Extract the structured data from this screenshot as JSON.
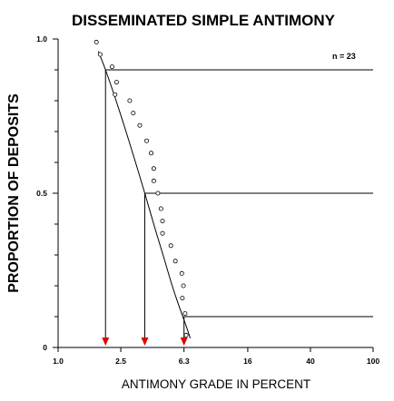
{
  "chart_data": {
    "type": "scatter",
    "title": "DISSEMINATED SIMPLE ANTIMONY",
    "xlabel": "ANTIMONY GRADE IN PERCENT",
    "ylabel": "PROPORTION OF DEPOSITS",
    "x_scale": "log",
    "xlim": [
      1.0,
      100
    ],
    "ylim": [
      0,
      1.0
    ],
    "x_ticks": [
      {
        "value": 1.0,
        "label": "1.0"
      },
      {
        "value": 2.5,
        "label": "2.5"
      },
      {
        "value": 6.3,
        "label": "6.3"
      },
      {
        "value": 16,
        "label": "16"
      },
      {
        "value": 40,
        "label": "40"
      },
      {
        "value": 100,
        "label": "100"
      }
    ],
    "y_ticks": [
      {
        "value": 0,
        "label": "0"
      },
      {
        "value": 0.5,
        "label": "0.5"
      },
      {
        "value": 1.0,
        "label": "1.0"
      }
    ],
    "annotation": "n = 23",
    "grid": false,
    "points": [
      {
        "x": 1.75,
        "y": 0.99
      },
      {
        "x": 1.85,
        "y": 0.95
      },
      {
        "x": 2.2,
        "y": 0.91
      },
      {
        "x": 2.35,
        "y": 0.86
      },
      {
        "x": 2.3,
        "y": 0.82
      },
      {
        "x": 2.85,
        "y": 0.8
      },
      {
        "x": 3.0,
        "y": 0.76
      },
      {
        "x": 3.3,
        "y": 0.72
      },
      {
        "x": 3.65,
        "y": 0.67
      },
      {
        "x": 3.9,
        "y": 0.63
      },
      {
        "x": 4.05,
        "y": 0.58
      },
      {
        "x": 4.05,
        "y": 0.54
      },
      {
        "x": 4.3,
        "y": 0.5
      },
      {
        "x": 4.5,
        "y": 0.45
      },
      {
        "x": 4.6,
        "y": 0.41
      },
      {
        "x": 4.6,
        "y": 0.37
      },
      {
        "x": 5.2,
        "y": 0.33
      },
      {
        "x": 5.55,
        "y": 0.28
      },
      {
        "x": 6.1,
        "y": 0.24
      },
      {
        "x": 6.25,
        "y": 0.2
      },
      {
        "x": 6.15,
        "y": 0.16
      },
      {
        "x": 6.4,
        "y": 0.11
      },
      {
        "x": 6.5,
        "y": 0.04
      }
    ],
    "fitted_curve": [
      {
        "x": 1.8,
        "y": 0.96
      },
      {
        "x": 2.0,
        "y": 0.9
      },
      {
        "x": 2.3,
        "y": 0.81
      },
      {
        "x": 2.7,
        "y": 0.7
      },
      {
        "x": 3.1,
        "y": 0.6
      },
      {
        "x": 3.55,
        "y": 0.5
      },
      {
        "x": 4.1,
        "y": 0.39
      },
      {
        "x": 4.7,
        "y": 0.29
      },
      {
        "x": 5.3,
        "y": 0.2
      },
      {
        "x": 5.9,
        "y": 0.13
      },
      {
        "x": 6.5,
        "y": 0.07
      },
      {
        "x": 6.9,
        "y": 0.03
      }
    ],
    "percentile_lines": [
      {
        "y": 0.9,
        "x": 2.0
      },
      {
        "y": 0.5,
        "x": 3.55
      },
      {
        "y": 0.1,
        "x": 6.3
      }
    ],
    "colors": {
      "arrow": "#dd0000",
      "line": "#000000"
    }
  }
}
